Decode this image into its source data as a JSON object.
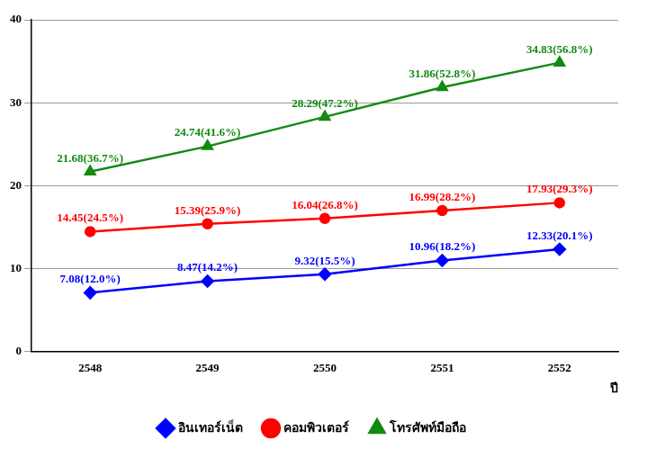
{
  "chart_data": {
    "type": "line",
    "categories": [
      "2548",
      "2549",
      "2550",
      "2551",
      "2552"
    ],
    "x_label": "ปี",
    "ylim": [
      0,
      40
    ],
    "yticks": [
      0,
      10,
      20,
      30,
      40
    ],
    "grid": true,
    "legend": "bottom",
    "data_labels": true,
    "series": [
      {
        "name": "อินเทอร์เน็ต",
        "color": "#0000ff",
        "marker": "diamond",
        "values": [
          7.08,
          8.47,
          9.32,
          10.96,
          12.33
        ],
        "value_labels": [
          "7.08(12.0%)",
          "8.47(14.2%)",
          "9.32(15.5%)",
          "10.96(18.2%)",
          "12.33(20.1%)"
        ]
      },
      {
        "name": "คอมพิวเตอร์",
        "color": "#ff0000",
        "marker": "circle",
        "values": [
          14.45,
          15.39,
          16.04,
          16.99,
          17.93
        ],
        "value_labels": [
          "14.45(24.5%)",
          "15.39(25.9%)",
          "16.04(26.8%)",
          "16.99(28.2%)",
          "17.93(29.3%)"
        ]
      },
      {
        "name": "โทรศัพท์มือถือ",
        "color": "#138a13",
        "marker": "triangle",
        "values": [
          21.68,
          24.74,
          28.29,
          31.86,
          34.83
        ],
        "value_labels": [
          "21.68(36.7%)",
          "24.74(41.6%)",
          "28.29(47.2%)",
          "31.86(52.8%)",
          "34.83(56.8%)"
        ]
      }
    ]
  }
}
